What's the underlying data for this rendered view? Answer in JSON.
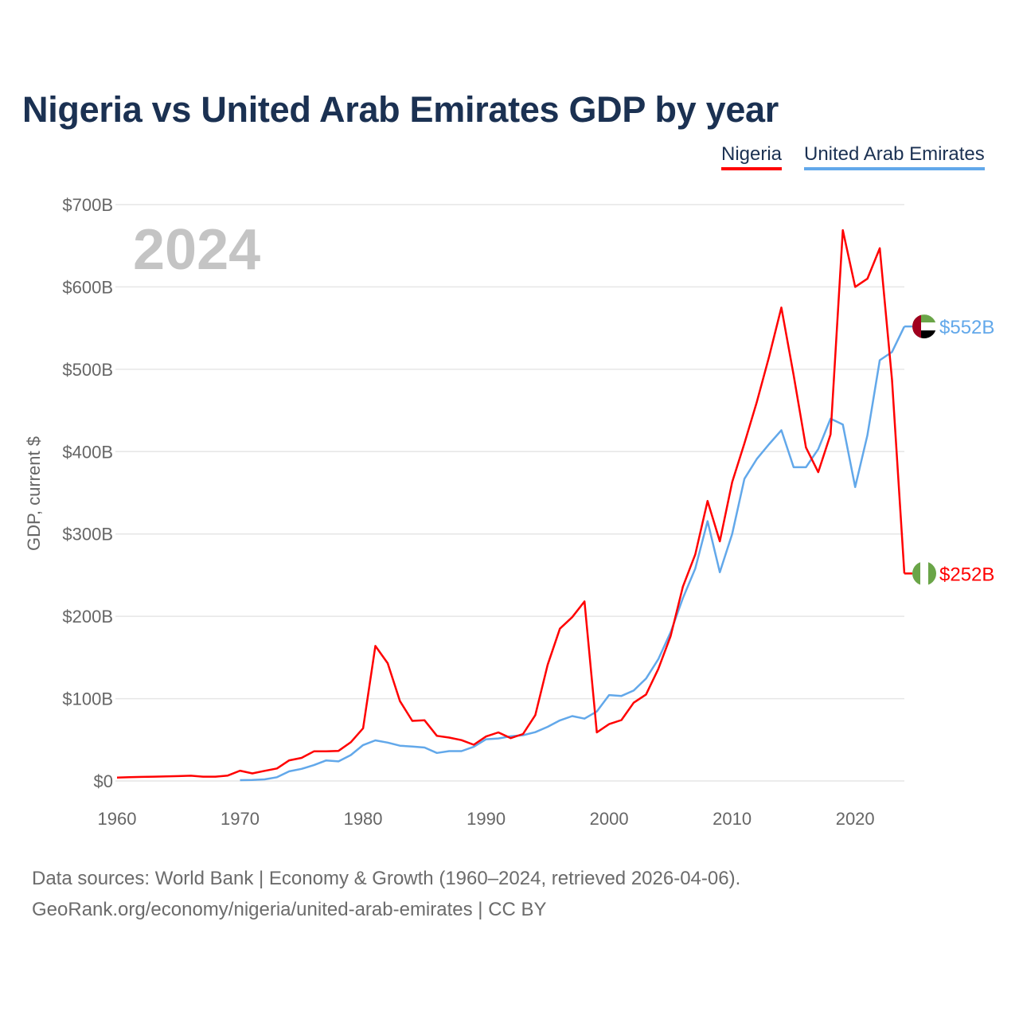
{
  "chart_data": {
    "type": "line",
    "title": "Nigeria vs United Arab Emirates GDP by year",
    "xlabel": "",
    "ylabel": "GDP, current $",
    "year_watermark": "2024",
    "xlim": [
      1960,
      2024
    ],
    "ylim": [
      0,
      700
    ],
    "x_ticks": [
      1960,
      1970,
      1980,
      1990,
      2000,
      2010,
      2020
    ],
    "x_tick_labels": [
      "1960",
      "1970",
      "1980",
      "1990",
      "2000",
      "2010",
      "2020"
    ],
    "y_ticks": [
      0,
      100,
      200,
      300,
      400,
      500,
      600,
      700
    ],
    "y_tick_labels": [
      "$0",
      "$100B",
      "$200B",
      "$300B",
      "$400B",
      "$500B",
      "$600B",
      "$700B"
    ],
    "grid": true,
    "legend_placement": "top-right",
    "units": "billion USD",
    "series": [
      {
        "name": "Nigeria",
        "color": "#ff0000",
        "end_label": "$252B",
        "flag": "nigeria-flag",
        "start_year": 1960,
        "values": [
          4.2,
          4.5,
          4.9,
          5.2,
          5.6,
          5.9,
          6.4,
          5.2,
          5.2,
          6.6,
          12.5,
          9.2,
          12.3,
          15.2,
          25,
          28,
          36,
          36,
          36.5,
          47,
          64,
          164,
          143,
          97,
          73,
          73.7,
          54.8,
          52.7,
          49.6,
          44,
          54,
          59,
          52,
          57,
          80,
          141,
          185,
          199,
          218,
          59,
          69,
          74,
          95,
          105,
          136,
          176,
          236,
          275,
          340,
          291,
          363,
          410,
          460,
          515,
          575,
          493,
          405,
          375,
          421,
          669,
          600,
          610,
          647,
          487,
          252
        ]
      },
      {
        "name": "United Arab Emirates",
        "color": "#62a8ea",
        "end_label": "$552B",
        "flag": "uae-flag",
        "start_year": 1970,
        "values": [
          1.0,
          1.2,
          1.9,
          4.5,
          11.7,
          14.7,
          19.2,
          24.9,
          23.8,
          31.4,
          43.6,
          49.3,
          46.6,
          42.8,
          41.8,
          40.6,
          34,
          36.3,
          36.3,
          41.5,
          50.7,
          51.6,
          54.2,
          55.6,
          59.3,
          65.7,
          73.6,
          78.8,
          75.7,
          84.4,
          104.3,
          103.3,
          109.8,
          124.3,
          147.8,
          180.6,
          222.1,
          257.9,
          315.5,
          253.5,
          300,
          367,
          391,
          409,
          426,
          381,
          381,
          403,
          440,
          433,
          357,
          420,
          511,
          521,
          552
        ]
      }
    ]
  },
  "source": {
    "line1": "Data sources: World Bank | Economy & Growth (1960–2024, retrieved 2026-04-06).",
    "line2": "GeoRank.org/economy/nigeria/united-arab-emirates | CC BY"
  }
}
